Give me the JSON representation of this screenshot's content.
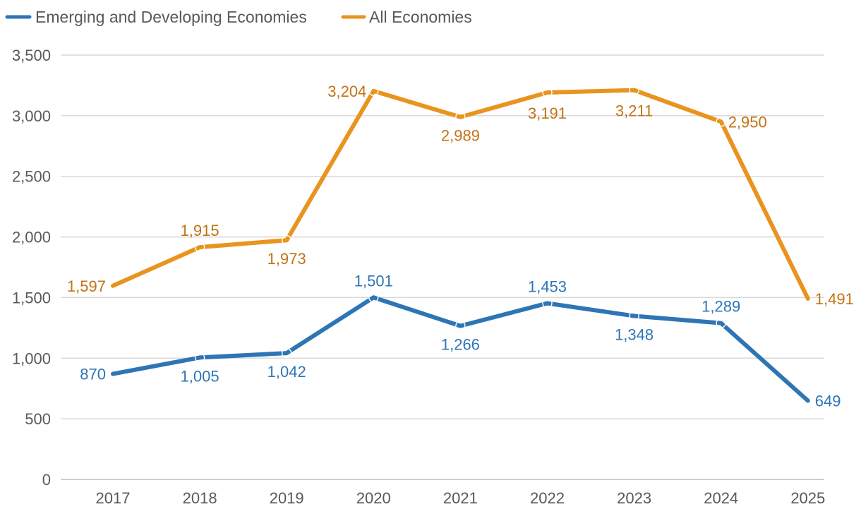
{
  "chart_data": {
    "type": "line",
    "title": "",
    "xlabel": "",
    "ylabel": "",
    "categories": [
      "2017",
      "2018",
      "2019",
      "2020",
      "2021",
      "2022",
      "2023",
      "2024",
      "2025"
    ],
    "ylim": [
      0,
      3500
    ],
    "yticks": [
      0,
      500,
      1000,
      1500,
      2000,
      2500,
      3000,
      3500
    ],
    "ytick_labels": [
      "0",
      "500",
      "1,000",
      "1,500",
      "2,000",
      "2,500",
      "3,000",
      "3,500"
    ],
    "grid": true,
    "legend_position": "top-left",
    "series": [
      {
        "name": "Emerging and Developing Economies",
        "color": "#2E75B6",
        "label_color": "#2E75B6",
        "values": [
          870,
          1005,
          1042,
          1501,
          1266,
          1453,
          1348,
          1289,
          649
        ],
        "labels": [
          "870",
          "1,005",
          "1,042",
          "1,501",
          "1,266",
          "1,453",
          "1,348",
          "1,289",
          "649"
        ],
        "label_positions": [
          "left",
          "below",
          "below",
          "above",
          "below",
          "above",
          "below",
          "above",
          "right"
        ]
      },
      {
        "name": "All Economies",
        "color": "#E8941F",
        "label_color": "#C27214",
        "values": [
          1597,
          1915,
          1973,
          3204,
          2989,
          3191,
          3211,
          2950,
          1491
        ],
        "labels": [
          "1,597",
          "1,915",
          "1,973",
          "3,204",
          "2,989",
          "3,191",
          "3,211",
          "2,950",
          "1,491"
        ],
        "label_positions": [
          "left",
          "above",
          "below",
          "left",
          "below",
          "center",
          "center",
          "right",
          "right"
        ]
      }
    ]
  }
}
